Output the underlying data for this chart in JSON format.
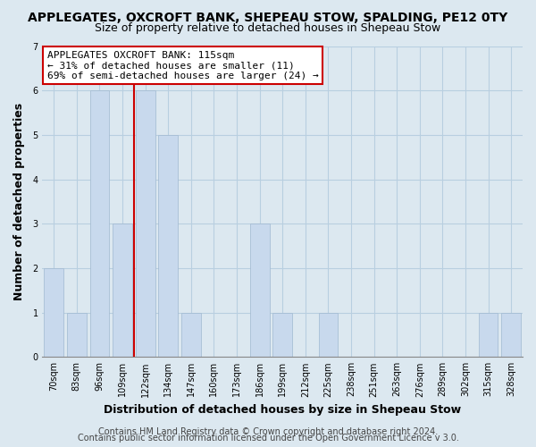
{
  "title": "APPLEGATES, OXCROFT BANK, SHEPEAU STOW, SPALDING, PE12 0TY",
  "subtitle": "Size of property relative to detached houses in Shepeau Stow",
  "xlabel": "Distribution of detached houses by size in Shepeau Stow",
  "ylabel": "Number of detached properties",
  "categories": [
    "70sqm",
    "83sqm",
    "96sqm",
    "109sqm",
    "122sqm",
    "134sqm",
    "147sqm",
    "160sqm",
    "173sqm",
    "186sqm",
    "199sqm",
    "212sqm",
    "225sqm",
    "238sqm",
    "251sqm",
    "263sqm",
    "276sqm",
    "289sqm",
    "302sqm",
    "315sqm",
    "328sqm"
  ],
  "values": [
    2,
    1,
    6,
    3,
    6,
    5,
    1,
    0,
    0,
    3,
    1,
    0,
    1,
    0,
    0,
    0,
    0,
    0,
    0,
    1,
    1
  ],
  "bar_color": "#c8d9ed",
  "marker_bar_index": 3,
  "marker_color": "#cc0000",
  "ylim": [
    0,
    7
  ],
  "yticks": [
    0,
    1,
    2,
    3,
    4,
    5,
    6,
    7
  ],
  "annotation_title": "APPLEGATES OXCROFT BANK: 115sqm",
  "annotation_line1": "← 31% of detached houses are smaller (11)",
  "annotation_line2": "69% of semi-detached houses are larger (24) →",
  "footer1": "Contains HM Land Registry data © Crown copyright and database right 2024.",
  "footer2": "Contains public sector information licensed under the Open Government Licence v 3.0.",
  "bg_color": "#dce8f0",
  "plot_bg_color": "#dce8f0",
  "grid_color": "#b8cfe0",
  "title_fontsize": 10,
  "subtitle_fontsize": 9,
  "axis_label_fontsize": 9,
  "tick_fontsize": 7,
  "annotation_fontsize": 8,
  "footer_fontsize": 7
}
